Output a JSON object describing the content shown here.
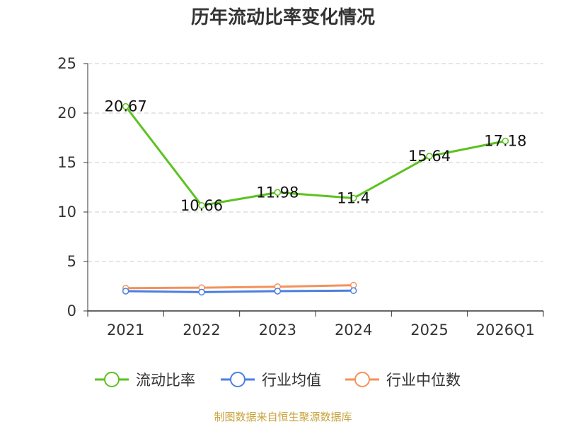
{
  "chart_data": {
    "type": "line",
    "title": "历年流动比率变化情况",
    "categories": [
      "2021",
      "2022",
      "2023",
      "2024",
      "2025",
      "2026Q1"
    ],
    "ylim": [
      0,
      25
    ],
    "yticks": [
      "0",
      "5",
      "10",
      "15",
      "20",
      "25"
    ],
    "grid": true,
    "legend_position": "bottom",
    "series": [
      {
        "name": "流动比率",
        "color": "#5cc21f",
        "values": [
          20.67,
          10.66,
          11.98,
          11.4,
          15.64,
          17.18
        ],
        "labels": [
          "20.67",
          "10.66",
          "11.98",
          "11.4",
          "15.64",
          "17.18"
        ]
      },
      {
        "name": "行业均值",
        "color": "#4a7fe0",
        "values": [
          2.0,
          1.9,
          2.0,
          2.05,
          null,
          null
        ]
      },
      {
        "name": "行业中位数",
        "color": "#f5915a",
        "values": [
          2.3,
          2.35,
          2.45,
          2.6,
          null,
          null
        ]
      }
    ]
  },
  "source": "制图数据来自恒生聚源数据库"
}
